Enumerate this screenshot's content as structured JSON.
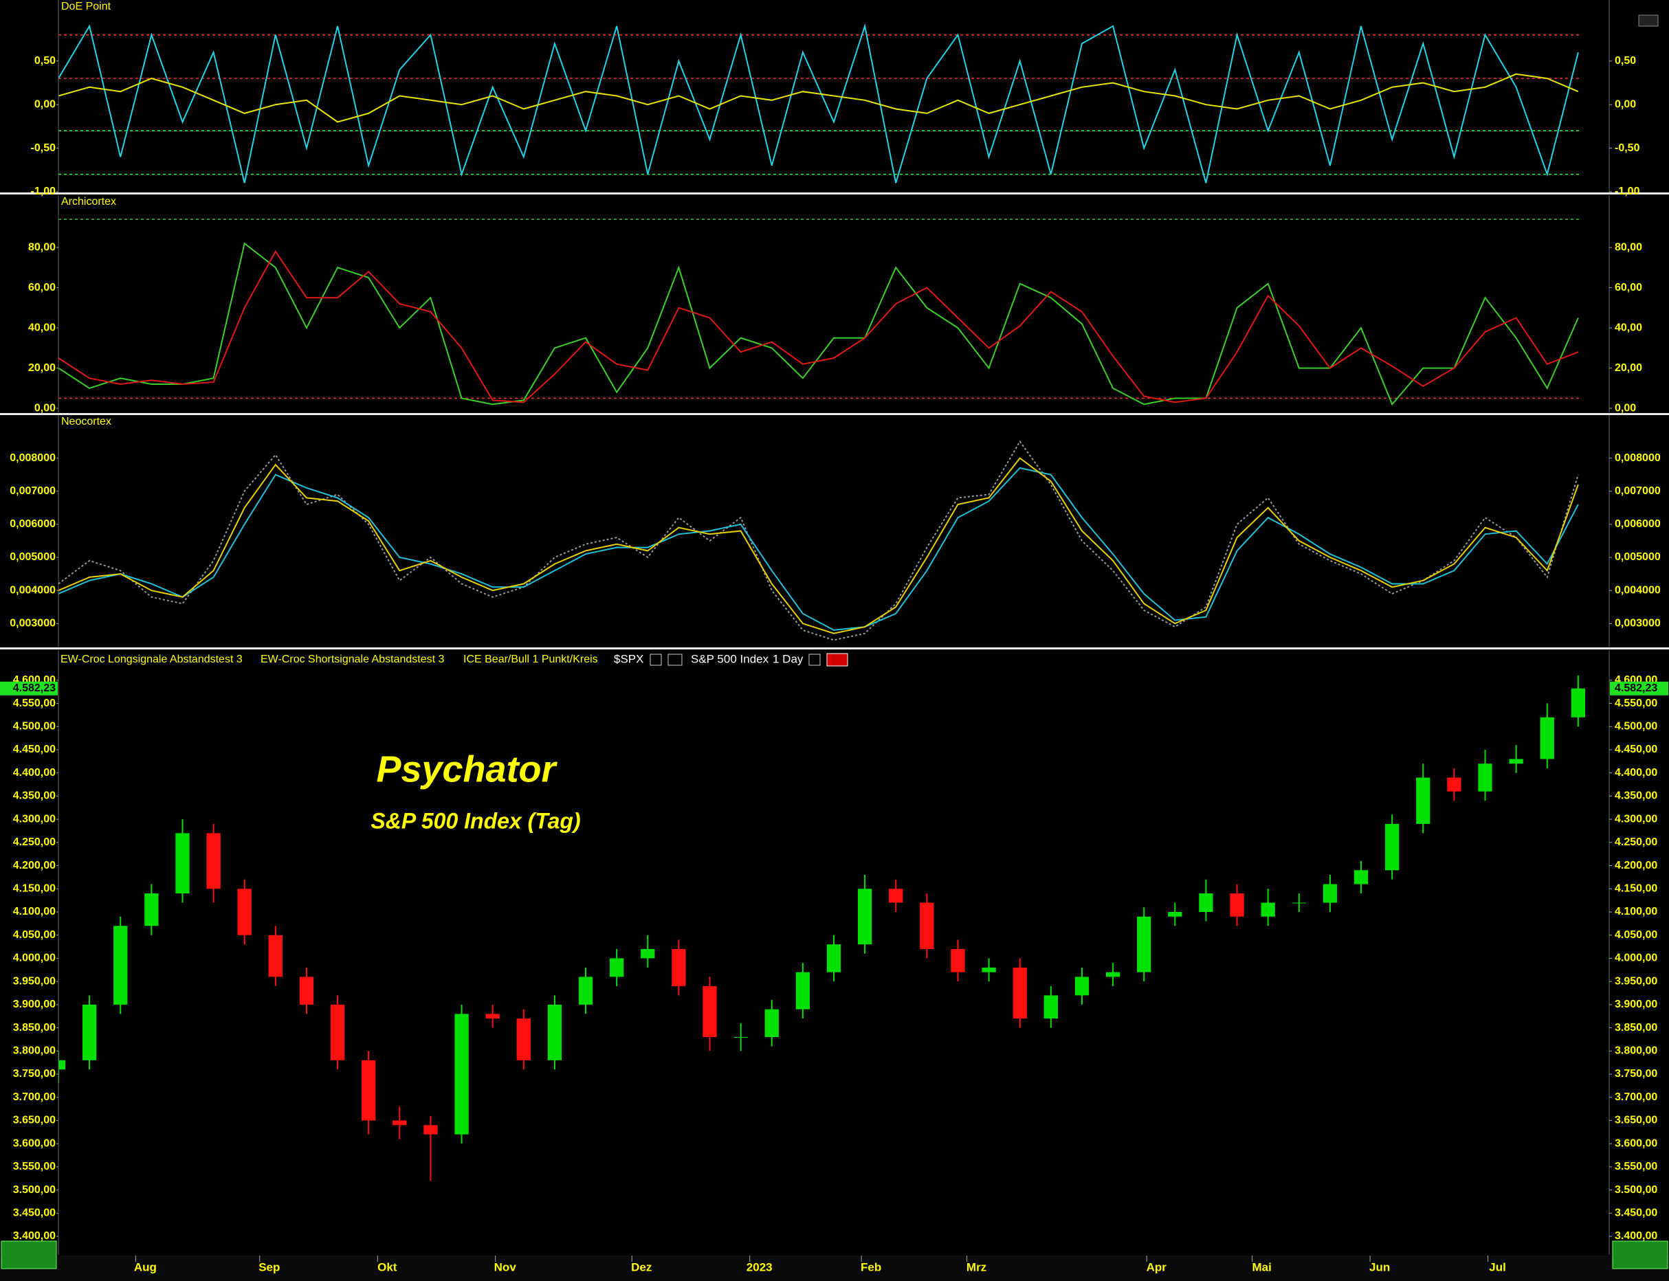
{
  "chart_data": [
    {
      "type": "line",
      "title": "DoE Point",
      "xlim": [
        0,
        250
      ],
      "ylim": [
        -1.0,
        1.2
      ],
      "yticks": [
        {
          "value": 0.5,
          "label": "0,50"
        },
        {
          "value": 0,
          "label": "0,00"
        },
        {
          "value": -0.5,
          "label": "-0,50"
        },
        {
          "value": -1,
          "label": "-1,00"
        }
      ],
      "ref_lines": [
        {
          "value": 0.8,
          "color": "#ff3030"
        },
        {
          "value": 0.3,
          "color": "#ff3030"
        },
        {
          "value": -0.3,
          "color": "#30ff30"
        },
        {
          "value": -0.8,
          "color": "#30ff30"
        }
      ],
      "x": [
        0,
        5,
        10,
        15,
        20,
        25,
        30,
        35,
        40,
        45,
        50,
        55,
        60,
        65,
        70,
        75,
        80,
        85,
        90,
        95,
        100,
        105,
        110,
        115,
        120,
        125,
        130,
        135,
        140,
        145,
        150,
        155,
        160,
        165,
        170,
        175,
        180,
        185,
        190,
        195,
        200,
        205,
        210,
        215,
        220,
        225,
        230,
        235,
        240,
        245
      ],
      "series": [
        {
          "color": "#22d3e6",
          "values": [
            0.3,
            0.9,
            -0.6,
            0.8,
            -0.2,
            0.6,
            -0.9,
            0.8,
            -0.5,
            0.9,
            -0.7,
            0.4,
            0.8,
            -0.8,
            0.2,
            -0.6,
            0.7,
            -0.3,
            0.9,
            -0.8,
            0.5,
            -0.4,
            0.8,
            -0.7,
            0.6,
            -0.2,
            0.9,
            -0.9,
            0.3,
            0.8,
            -0.6,
            0.5,
            -0.8,
            0.7,
            0.9,
            -0.5,
            0.4,
            -0.9,
            0.8,
            -0.3,
            0.6,
            -0.7,
            0.9,
            -0.4,
            0.7,
            -0.6,
            0.8,
            0.2,
            -0.8,
            0.6
          ]
        },
        {
          "color": "#e6e600",
          "values": [
            0.1,
            0.2,
            0.15,
            0.3,
            0.2,
            0.05,
            -0.1,
            0,
            0.05,
            -0.2,
            -0.1,
            0.1,
            0.05,
            0,
            0.1,
            -0.05,
            0.05,
            0.15,
            0.1,
            0,
            0.1,
            -0.05,
            0.1,
            0.05,
            0.15,
            0.1,
            0.05,
            -0.05,
            -0.1,
            0.05,
            -0.1,
            0,
            0.1,
            0.2,
            0.25,
            0.15,
            0.1,
            0,
            -0.05,
            0.05,
            0.1,
            -0.05,
            0.05,
            0.2,
            0.25,
            0.15,
            0.2,
            0.35,
            0.3,
            0.15
          ]
        }
      ]
    },
    {
      "type": "line",
      "title": "Archicortex",
      "xlim": [
        0,
        250
      ],
      "ylim": [
        -2,
        106
      ],
      "yticks": [
        {
          "value": 80,
          "label": "80,00"
        },
        {
          "value": 60,
          "label": "60,00"
        },
        {
          "value": 40,
          "label": "40,00"
        },
        {
          "value": 20,
          "label": "20,00"
        },
        {
          "value": 0,
          "label": "0,00"
        }
      ],
      "ref_lines": [
        {
          "value": 94,
          "color": "#30c030"
        },
        {
          "value": 5,
          "color": "#ff3030"
        }
      ],
      "x": [
        0,
        5,
        10,
        15,
        20,
        25,
        30,
        35,
        40,
        45,
        50,
        55,
        60,
        65,
        70,
        75,
        80,
        85,
        90,
        95,
        100,
        105,
        110,
        115,
        120,
        125,
        130,
        135,
        140,
        145,
        150,
        155,
        160,
        165,
        170,
        175,
        180,
        185,
        190,
        195,
        200,
        205,
        210,
        215,
        220,
        225,
        230,
        235,
        240,
        245
      ],
      "series": [
        {
          "color": "#3ccf2a",
          "values": [
            20,
            10,
            15,
            12,
            12,
            15,
            82,
            70,
            40,
            70,
            65,
            40,
            55,
            5,
            2,
            4,
            30,
            35,
            8,
            30,
            70,
            20,
            35,
            30,
            15,
            35,
            35,
            70,
            50,
            40,
            20,
            62,
            55,
            42,
            10,
            2,
            5,
            5,
            50,
            62,
            20,
            20,
            40,
            2,
            20,
            20,
            55,
            35,
            10,
            45
          ]
        },
        {
          "color": "#e01818",
          "values": [
            25,
            15,
            12,
            14,
            12,
            13,
            50,
            78,
            55,
            55,
            68,
            52,
            48,
            30,
            4,
            3,
            17,
            33,
            22,
            19,
            50,
            45,
            28,
            33,
            22,
            25,
            35,
            52,
            60,
            45,
            30,
            41,
            58,
            48,
            26,
            6,
            3,
            5,
            28,
            56,
            41,
            20,
            30,
            21,
            11,
            20,
            38,
            45,
            22,
            28
          ]
        }
      ]
    },
    {
      "type": "line",
      "title": "Neocortex",
      "xlim": [
        0,
        250
      ],
      "ylim": [
        0.0023,
        0.0093
      ],
      "yticks": [
        {
          "value": 0.008,
          "label": "0,008000"
        },
        {
          "value": 0.007,
          "label": "0,007000"
        },
        {
          "value": 0.006,
          "label": "0,006000"
        },
        {
          "value": 0.005,
          "label": "0,005000"
        },
        {
          "value": 0.004,
          "label": "0,004000"
        },
        {
          "value": 0.003,
          "label": "0,003000"
        }
      ],
      "x": [
        0,
        5,
        10,
        15,
        20,
        25,
        30,
        35,
        40,
        45,
        50,
        55,
        60,
        65,
        70,
        75,
        80,
        85,
        90,
        95,
        100,
        105,
        110,
        115,
        120,
        125,
        130,
        135,
        140,
        145,
        150,
        155,
        160,
        165,
        170,
        175,
        180,
        185,
        190,
        195,
        200,
        205,
        210,
        215,
        220,
        225,
        230,
        235,
        240,
        245
      ],
      "series": [
        {
          "color": "#9a9a9a",
          "dash": true,
          "values": [
            0.0042,
            0.0049,
            0.0046,
            0.0038,
            0.0036,
            0.0049,
            0.007,
            0.0081,
            0.0066,
            0.0069,
            0.006,
            0.0043,
            0.005,
            0.0042,
            0.0038,
            0.0041,
            0.005,
            0.0054,
            0.0056,
            0.005,
            0.0062,
            0.0055,
            0.0062,
            0.004,
            0.0028,
            0.0025,
            0.0027,
            0.0036,
            0.0053,
            0.0068,
            0.0069,
            0.0085,
            0.0072,
            0.0055,
            0.0046,
            0.0034,
            0.0029,
            0.0035,
            0.006,
            0.0068,
            0.0054,
            0.0049,
            0.0045,
            0.0039,
            0.0043,
            0.0049,
            0.0062,
            0.0056,
            0.0044,
            0.0075
          ]
        },
        {
          "color": "#22c0d8",
          "values": [
            0.0039,
            0.0043,
            0.0045,
            0.0042,
            0.0038,
            0.0044,
            0.006,
            0.0075,
            0.0071,
            0.0068,
            0.0062,
            0.005,
            0.0048,
            0.0045,
            0.0041,
            0.0041,
            0.0046,
            0.0051,
            0.0053,
            0.0053,
            0.0057,
            0.0058,
            0.006,
            0.0046,
            0.0033,
            0.0028,
            0.0029,
            0.0033,
            0.0046,
            0.0062,
            0.0067,
            0.0077,
            0.0075,
            0.0062,
            0.0051,
            0.0039,
            0.0031,
            0.0032,
            0.0052,
            0.0062,
            0.0057,
            0.0051,
            0.0047,
            0.0042,
            0.0042,
            0.0046,
            0.0057,
            0.0058,
            0.0048,
            0.0066
          ]
        },
        {
          "color": "#e6d000",
          "values": [
            0.004,
            0.0044,
            0.0045,
            0.004,
            0.0038,
            0.0046,
            0.0065,
            0.0078,
            0.0068,
            0.0067,
            0.0061,
            0.0046,
            0.0049,
            0.0044,
            0.004,
            0.0042,
            0.0048,
            0.0052,
            0.0054,
            0.0052,
            0.0059,
            0.0057,
            0.0058,
            0.0042,
            0.003,
            0.0027,
            0.0029,
            0.0035,
            0.005,
            0.0066,
            0.0068,
            0.008,
            0.0073,
            0.0058,
            0.0049,
            0.0036,
            0.003,
            0.0034,
            0.0056,
            0.0065,
            0.0055,
            0.005,
            0.0046,
            0.0041,
            0.0043,
            0.0048,
            0.0059,
            0.0056,
            0.0046,
            0.0072
          ]
        }
      ]
    },
    {
      "type": "candlestick",
      "title": "Psychator",
      "subtitle": "S&P 500 Index (Tag)",
      "indicators": [
        "EW-Croc Longsignale Abstandstest 3",
        "EW-Croc Shortsignale Abstandstest 3",
        "ICE Bear/Bull 1 Punkt/Kreis"
      ],
      "symbol": "$SPX",
      "instrument": "S&P 500 Index",
      "interval": "1 Day",
      "up_color": "#00e000",
      "down_color": "#ff1010",
      "last_price": {
        "value": 4582.23,
        "label": "4.582,23"
      },
      "xlim": [
        0,
        250
      ],
      "ylim": [
        3360,
        4665
      ],
      "xticks": [
        {
          "value": 14,
          "label": "Aug"
        },
        {
          "value": 34,
          "label": "Sep"
        },
        {
          "value": 53,
          "label": "Okt"
        },
        {
          "value": 72,
          "label": "Nov"
        },
        {
          "value": 94,
          "label": "Dez"
        },
        {
          "value": 113,
          "label": "2023"
        },
        {
          "value": 131,
          "label": "Feb"
        },
        {
          "value": 148,
          "label": "Mrz"
        },
        {
          "value": 177,
          "label": "Apr"
        },
        {
          "value": 194,
          "label": "Mai"
        },
        {
          "value": 213,
          "label": "Jun"
        },
        {
          "value": 232,
          "label": "Jul"
        }
      ],
      "yticks": [
        {
          "value": 4600,
          "label": "4.600,00"
        },
        {
          "value": 4550,
          "label": "4.550,00"
        },
        {
          "value": 4500,
          "label": "4.500,00"
        },
        {
          "value": 4450,
          "label": "4.450,00"
        },
        {
          "value": 4400,
          "label": "4.400,00"
        },
        {
          "value": 4350,
          "label": "4.350,00"
        },
        {
          "value": 4300,
          "label": "4.300,00"
        },
        {
          "value": 4250,
          "label": "4.250,00"
        },
        {
          "value": 4200,
          "label": "4.200,00"
        },
        {
          "value": 4150,
          "label": "4.150,00"
        },
        {
          "value": 4100,
          "label": "4.100,00"
        },
        {
          "value": 4050,
          "label": "4.050,00"
        },
        {
          "value": 4000,
          "label": "4.000,00"
        },
        {
          "value": 3950,
          "label": "3.950,00"
        },
        {
          "value": 3900,
          "label": "3.900,00"
        },
        {
          "value": 3850,
          "label": "3.850,00"
        },
        {
          "value": 3800,
          "label": "3.800,00"
        },
        {
          "value": 3750,
          "label": "3.750,00"
        },
        {
          "value": 3700,
          "label": "3.700,00"
        },
        {
          "value": 3650,
          "label": "3.650,00"
        },
        {
          "value": 3600,
          "label": "3.600,00"
        },
        {
          "value": 3550,
          "label": "3.550,00"
        },
        {
          "value": 3500,
          "label": "3.500,00"
        },
        {
          "value": 3450,
          "label": "3.450,00"
        },
        {
          "value": 3400,
          "label": "3.400,00"
        }
      ],
      "x": [
        0,
        5,
        10,
        15,
        20,
        25,
        30,
        35,
        40,
        45,
        50,
        55,
        60,
        65,
        70,
        75,
        80,
        85,
        90,
        95,
        100,
        105,
        110,
        115,
        120,
        125,
        130,
        135,
        140,
        145,
        150,
        155,
        160,
        165,
        170,
        175,
        180,
        185,
        190,
        195,
        200,
        205,
        210,
        215,
        220,
        225,
        230,
        235,
        240,
        245
      ],
      "open": [
        3760,
        3780,
        3900,
        4070,
        4140,
        4270,
        4150,
        4050,
        3960,
        3900,
        3780,
        3650,
        3640,
        3620,
        3880,
        3870,
        3780,
        3900,
        3960,
        4000,
        4020,
        3940,
        3830,
        3830,
        3890,
        3970,
        4030,
        4150,
        4120,
        4020,
        3970,
        3980,
        3870,
        3920,
        3960,
        3970,
        4090,
        4100,
        4140,
        4090,
        4120,
        4120,
        4160,
        4190,
        4290,
        4390,
        4360,
        4420,
        4430,
        4520
      ],
      "high": [
        3800,
        3920,
        4090,
        4160,
        4300,
        4290,
        4170,
        4070,
        3980,
        3920,
        3800,
        3680,
        3660,
        3900,
        3900,
        3890,
        3920,
        3980,
        4020,
        4050,
        4040,
        3960,
        3860,
        3910,
        3990,
        4050,
        4180,
        4170,
        4140,
        4040,
        4000,
        4000,
        3940,
        3980,
        3990,
        4110,
        4120,
        4170,
        4160,
        4150,
        4140,
        4180,
        4210,
        4310,
        4420,
        4410,
        4450,
        4460,
        4550,
        4610
      ],
      "low": [
        3730,
        3760,
        3880,
        4050,
        4120,
        4120,
        4030,
        3940,
        3880,
        3760,
        3620,
        3610,
        3520,
        3600,
        3850,
        3760,
        3760,
        3880,
        3940,
        3980,
        3920,
        3800,
        3800,
        3810,
        3870,
        3950,
        4010,
        4100,
        4000,
        3950,
        3950,
        3850,
        3850,
        3900,
        3940,
        3950,
        4070,
        4080,
        4070,
        4070,
        4100,
        4100,
        4140,
        4170,
        4270,
        4340,
        4340,
        4400,
        4410,
        4500
      ],
      "close": [
        3780,
        3900,
        4070,
        4140,
        4270,
        4150,
        4050,
        3960,
        3900,
        3780,
        3650,
        3640,
        3620,
        3880,
        3870,
        3780,
        3900,
        3960,
        4000,
        4020,
        3940,
        3830,
        3830,
        3890,
        3970,
        4030,
        4150,
        4120,
        4020,
        3970,
        3980,
        3870,
        3920,
        3960,
        3970,
        4090,
        4100,
        4140,
        4090,
        4120,
        4120,
        4160,
        4190,
        4290,
        4390,
        4360,
        4420,
        4430,
        4520,
        4582.23
      ]
    }
  ]
}
